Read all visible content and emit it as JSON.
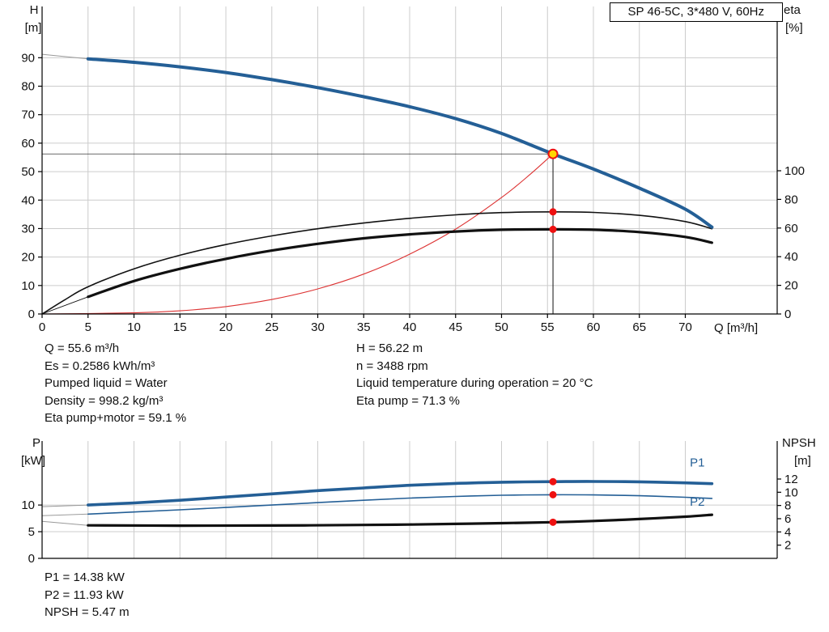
{
  "colors": {
    "curve_blue": "#245f96",
    "curve_black": "#111111",
    "curve_red": "#dd3333",
    "lead_gray": "#999999",
    "grid": "#cccccc",
    "axis": "#000000",
    "duty_yellow": "#ffd700",
    "duty_red": "#ee1111"
  },
  "info_top": {
    "left": [
      "Q = 55.6 m³/h",
      "Es = 0.2586 kWh/m³",
      "Pumped liquid = Water",
      "Density = 998.2 kg/m³",
      "Eta pump+motor = 59.1 %"
    ],
    "right": [
      "H = 56.22 m",
      "n = 3488 rpm",
      "Liquid temperature during operation = 20 °C",
      "Eta pump = 71.3 %"
    ]
  },
  "info_bottom": [
    "P1 = 14.38 kW",
    "P2 = 11.93 kW",
    "NPSH = 5.47 m"
  ],
  "chart_data": [
    {
      "type": "line",
      "title": "SP 46-5C, 3*480 V, 60Hz",
      "x_axis": {
        "label": "Q [m³/h]",
        "min": 0,
        "max": 80,
        "ticks": [
          0,
          5,
          10,
          15,
          20,
          25,
          30,
          35,
          40,
          45,
          50,
          55,
          60,
          65,
          70
        ],
        "grid": true,
        "show_tick_labels": true
      },
      "y_left": {
        "label": "H [m]",
        "title_lines": [
          "H",
          "[m]"
        ],
        "min": 0,
        "max": 108,
        "ticks": [
          0,
          10,
          20,
          30,
          40,
          50,
          60,
          70,
          80,
          90
        ],
        "grid": true
      },
      "y_right": {
        "label": "eta [%]",
        "title_lines": [
          "eta",
          "[%]"
        ],
        "min": 0,
        "max": 214.7,
        "ticks": [
          0,
          20,
          40,
          60,
          80,
          100
        ]
      },
      "duty_point": {
        "Q": 55.6,
        "H": 56.22,
        "eta_pump": 71.3,
        "eta_pump_motor": 59.1
      },
      "series": [
        {
          "name": "head-curve-lead",
          "axis": "left",
          "color_key": "lead_gray",
          "width": 1,
          "points": [
            [
              0,
              91.2
            ],
            [
              5,
              89.6
            ]
          ]
        },
        {
          "name": "eta-pump-motor-lead",
          "axis": "right",
          "color_key": "curve_black",
          "width": 0.9,
          "points": [
            [
              0,
              0
            ],
            [
              5,
              12
            ]
          ]
        },
        {
          "name": "system-curve",
          "axis": "left",
          "color_key": "curve_red",
          "width": 1.1,
          "points": [
            [
              0,
              0
            ],
            [
              10,
              0.4
            ],
            [
              15,
              1.1
            ],
            [
              20,
              2.6
            ],
            [
              25,
              5.1
            ],
            [
              30,
              8.8
            ],
            [
              35,
              14
            ],
            [
              40,
              21
            ],
            [
              45,
              29.8
            ],
            [
              50,
              40.9
            ],
            [
              53,
              48.7
            ],
            [
              55.6,
              56.22
            ]
          ]
        },
        {
          "name": "eta-pump-curve",
          "axis": "right",
          "color_key": "curve_black",
          "width": 1.6,
          "points": [
            [
              0,
              0
            ],
            [
              2.5,
              10
            ],
            [
              5,
              19
            ],
            [
              10,
              31.5
            ],
            [
              15,
              41
            ],
            [
              20,
              48.5
            ],
            [
              25,
              54.5
            ],
            [
              30,
              59.5
            ],
            [
              35,
              63.5
            ],
            [
              40,
              66.8
            ],
            [
              45,
              69.2
            ],
            [
              50,
              70.8
            ],
            [
              55.6,
              71.3
            ],
            [
              60,
              70.9
            ],
            [
              65,
              68.9
            ],
            [
              70,
              64.5
            ],
            [
              72.9,
              59.5
            ]
          ]
        },
        {
          "name": "eta-pump-motor-curve",
          "axis": "right",
          "color_key": "curve_black",
          "width": 3.2,
          "points": [
            [
              5,
              12
            ],
            [
              10,
              23
            ],
            [
              15,
              31.5
            ],
            [
              20,
              38.5
            ],
            [
              25,
              44.3
            ],
            [
              30,
              49
            ],
            [
              35,
              52.8
            ],
            [
              40,
              55.6
            ],
            [
              45,
              57.6
            ],
            [
              50,
              58.8
            ],
            [
              55.6,
              59.1
            ],
            [
              60,
              58.8
            ],
            [
              65,
              57.2
            ],
            [
              70,
              53.8
            ],
            [
              72.9,
              49.8
            ]
          ]
        },
        {
          "name": "head-curve",
          "axis": "left",
          "color_key": "curve_blue",
          "width": 4,
          "points": [
            [
              5,
              89.6
            ],
            [
              10,
              88.4
            ],
            [
              15,
              86.8
            ],
            [
              20,
              84.8
            ],
            [
              25,
              82.3
            ],
            [
              30,
              79.5
            ],
            [
              35,
              76.3
            ],
            [
              40,
              72.8
            ],
            [
              45,
              68.6
            ],
            [
              50,
              63.4
            ],
            [
              55.6,
              56.22
            ],
            [
              60,
              50.9
            ],
            [
              65,
              44.2
            ],
            [
              70,
              36.8
            ],
            [
              72.9,
              30.5
            ]
          ]
        }
      ],
      "guides": [
        {
          "name": "duty-hline",
          "axis": "left",
          "from": [
            0,
            56.22
          ],
          "to": [
            55.6,
            56.22
          ],
          "color_key": "curve_black",
          "width": 0.7
        },
        {
          "name": "duty-vline",
          "axis": "left",
          "from": [
            55.6,
            0
          ],
          "to": [
            55.6,
            56.22
          ],
          "color_key": "curve_black",
          "width": 1
        }
      ],
      "markers": [
        {
          "name": "eta-pump-duty-dot",
          "axis": "right",
          "x": 55.6,
          "y": 71.3,
          "r": 4.5,
          "fill_key": "duty_red"
        },
        {
          "name": "eta-pump-motor-duty-dot",
          "axis": "right",
          "x": 55.6,
          "y": 59.1,
          "r": 4.5,
          "fill_key": "duty_red"
        },
        {
          "name": "duty-point-marker",
          "axis": "left",
          "x": 55.6,
          "y": 56.22,
          "r": 5.5,
          "fill_key": "duty_yellow",
          "stroke_key": "duty_red",
          "stroke_width": 2
        }
      ],
      "annotations": []
    },
    {
      "type": "line",
      "title": "",
      "x_axis": {
        "label": "",
        "min": 0,
        "max": 80,
        "ticks": [
          0,
          5,
          10,
          15,
          20,
          25,
          30,
          35,
          40,
          45,
          50,
          55,
          60,
          65,
          70
        ],
        "grid": true,
        "show_tick_labels": false
      },
      "y_left": {
        "label": "P [kW]",
        "title_lines": [
          "P",
          "[kW]"
        ],
        "min": 0,
        "max": 22,
        "ticks": [
          0,
          5,
          10
        ],
        "grid": true
      },
      "y_right": {
        "label": "NPSH [m]",
        "title_lines": [
          "NPSH",
          "[m]"
        ],
        "min": 0,
        "max": 17.75,
        "ticks": [
          2,
          4,
          6,
          8,
          10,
          12
        ]
      },
      "duty_point": {
        "Q": 55.6,
        "P1": 14.38,
        "P2": 11.93,
        "NPSH": 5.47
      },
      "series": [
        {
          "name": "p1-lead",
          "axis": "left",
          "color_key": "lead_gray",
          "width": 1,
          "points": [
            [
              0,
              9.7
            ],
            [
              5,
              10.0
            ]
          ]
        },
        {
          "name": "p2-lead",
          "axis": "left",
          "color_key": "lead_gray",
          "width": 1,
          "points": [
            [
              0,
              8.0
            ],
            [
              5,
              8.3
            ]
          ]
        },
        {
          "name": "npsh-lead",
          "axis": "right",
          "color_key": "lead_gray",
          "width": 1,
          "points": [
            [
              0,
              5.6
            ],
            [
              5,
              5.0
            ]
          ]
        },
        {
          "name": "p2-curve",
          "axis": "left",
          "color_key": "curve_blue",
          "width": 1.6,
          "points": [
            [
              5,
              8.3
            ],
            [
              10,
              8.7
            ],
            [
              15,
              9.1
            ],
            [
              20,
              9.55
            ],
            [
              25,
              10.0
            ],
            [
              30,
              10.45
            ],
            [
              35,
              10.9
            ],
            [
              40,
              11.3
            ],
            [
              45,
              11.6
            ],
            [
              50,
              11.83
            ],
            [
              55.6,
              11.93
            ],
            [
              60,
              11.9
            ],
            [
              65,
              11.75
            ],
            [
              70,
              11.45
            ],
            [
              72.9,
              11.25
            ]
          ]
        },
        {
          "name": "p1-curve",
          "axis": "left",
          "color_key": "curve_blue",
          "width": 3.6,
          "points": [
            [
              5,
              10.0
            ],
            [
              10,
              10.4
            ],
            [
              15,
              10.9
            ],
            [
              20,
              11.5
            ],
            [
              25,
              12.1
            ],
            [
              30,
              12.7
            ],
            [
              35,
              13.2
            ],
            [
              40,
              13.7
            ],
            [
              45,
              14.05
            ],
            [
              50,
              14.28
            ],
            [
              55.6,
              14.38
            ],
            [
              60,
              14.42
            ],
            [
              65,
              14.35
            ],
            [
              70,
              14.15
            ],
            [
              72.9,
              14.0
            ]
          ]
        },
        {
          "name": "npsh-curve",
          "axis": "right",
          "color_key": "curve_black",
          "width": 3.2,
          "points": [
            [
              5,
              5.0
            ],
            [
              15,
              4.95
            ],
            [
              25,
              4.97
            ],
            [
              35,
              5.05
            ],
            [
              40,
              5.12
            ],
            [
              45,
              5.22
            ],
            [
              50,
              5.33
            ],
            [
              55.6,
              5.47
            ],
            [
              60,
              5.65
            ],
            [
              65,
              5.95
            ],
            [
              70,
              6.3
            ],
            [
              72.9,
              6.6
            ]
          ]
        }
      ],
      "guides": [],
      "markers": [
        {
          "name": "p1-duty-dot",
          "axis": "left",
          "x": 55.6,
          "y": 14.38,
          "r": 4.5,
          "fill_key": "duty_red"
        },
        {
          "name": "p2-duty-dot",
          "axis": "left",
          "x": 55.6,
          "y": 11.93,
          "r": 4.5,
          "fill_key": "duty_red"
        },
        {
          "name": "npsh-duty-dot",
          "axis": "right",
          "x": 55.6,
          "y": 5.47,
          "r": 4.5,
          "fill_key": "duty_red"
        }
      ],
      "annotations": [
        {
          "name": "p1-curve-label",
          "text": "P1",
          "axis": "left",
          "x": 70.5,
          "y": 17.2,
          "color_key": "curve_blue"
        },
        {
          "name": "p2-curve-label",
          "text": "P2",
          "axis": "left",
          "x": 70.5,
          "y": 9.9,
          "color_key": "curve_blue"
        }
      ]
    }
  ]
}
